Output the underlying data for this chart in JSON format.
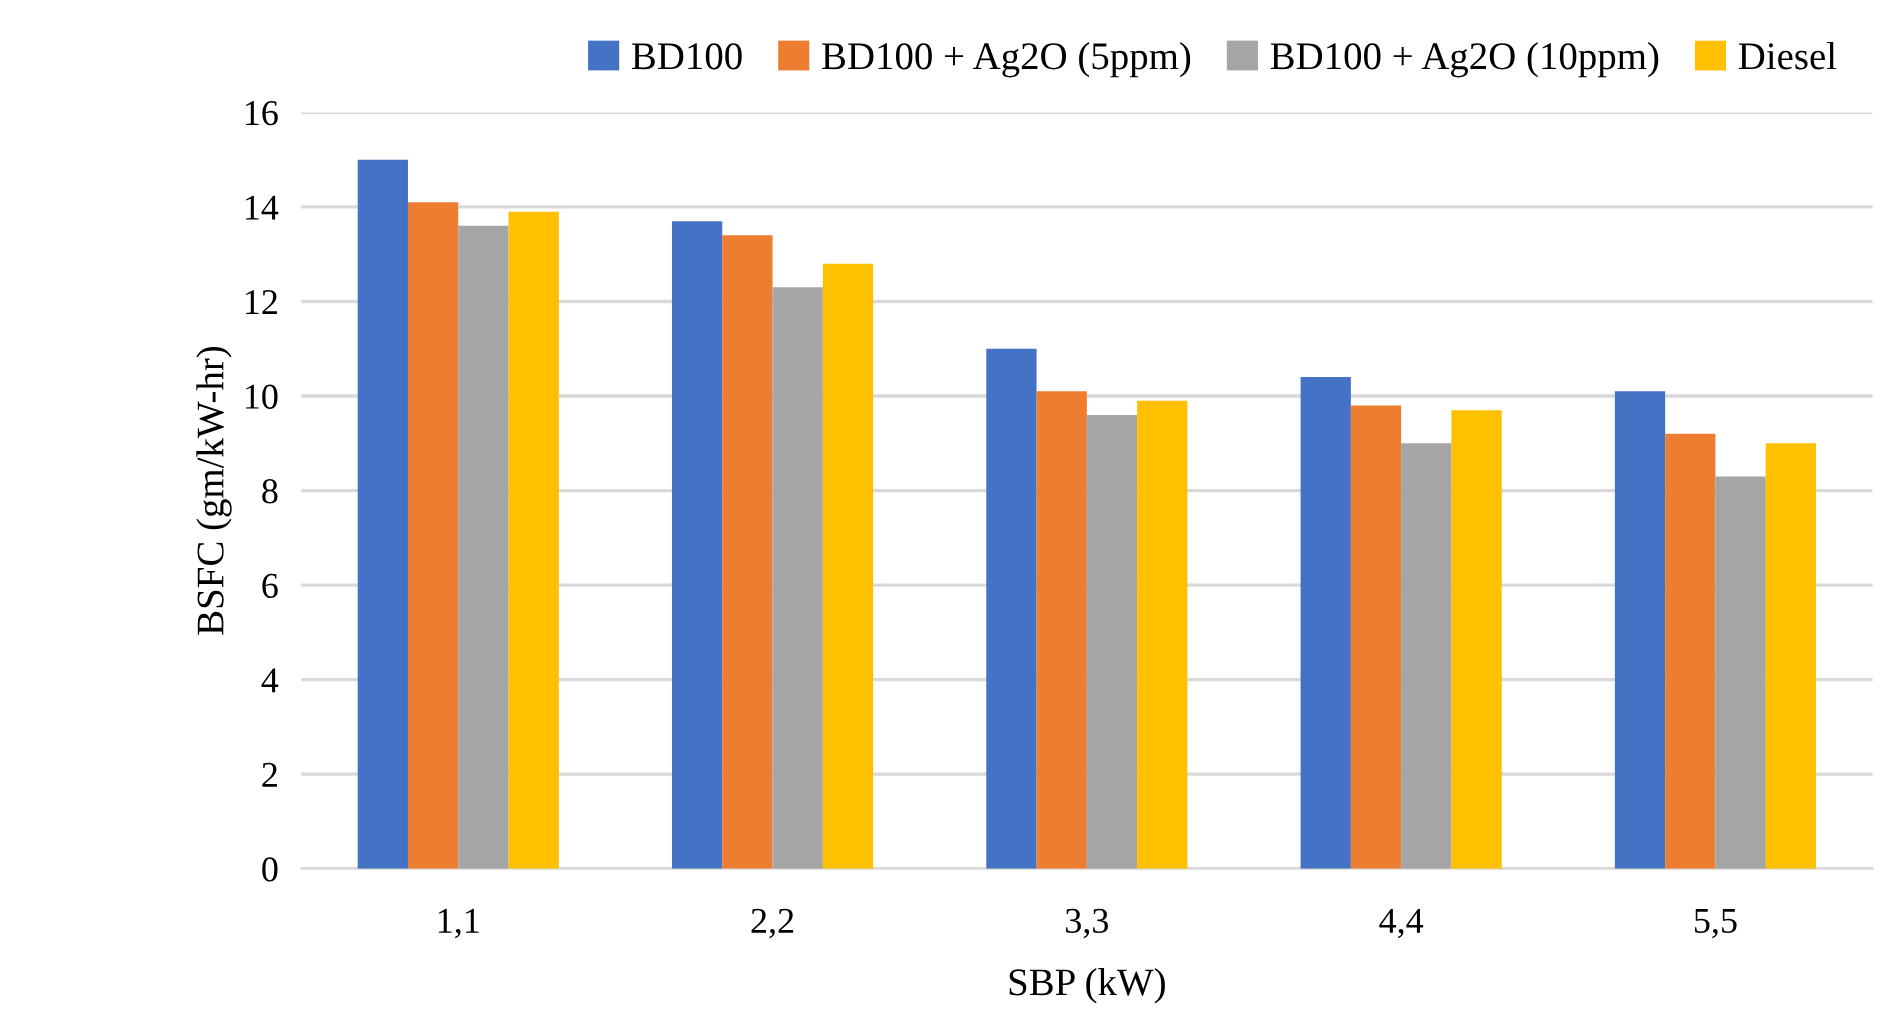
{
  "chart_data": {
    "type": "bar",
    "xlabel": "SBP (kW)",
    "ylabel": "BSFC (gm/kW-hr)",
    "categories": [
      "1,1",
      "2,2",
      "3,3",
      "4,4",
      "5,5"
    ],
    "series": [
      {
        "name": "BD100",
        "color": "#4472c4",
        "values": [
          15.0,
          13.7,
          11.0,
          10.4,
          10.1
        ]
      },
      {
        "name": "BD100 + Ag2O (5ppm)",
        "color": "#ed7d31",
        "values": [
          14.1,
          13.4,
          10.1,
          9.8,
          9.2
        ]
      },
      {
        "name": "BD100 + Ag2O (10ppm)",
        "color": "#a5a5a5",
        "values": [
          13.6,
          12.3,
          9.6,
          9.0,
          8.3
        ]
      },
      {
        "name": "Diesel",
        "color": "#ffc000",
        "values": [
          13.9,
          12.8,
          9.9,
          9.7,
          9.0
        ]
      }
    ],
    "ylim": [
      0,
      16
    ],
    "yticks": [
      0,
      2,
      4,
      6,
      8,
      10,
      12,
      14,
      16
    ],
    "grid": "y",
    "legend": "top"
  }
}
